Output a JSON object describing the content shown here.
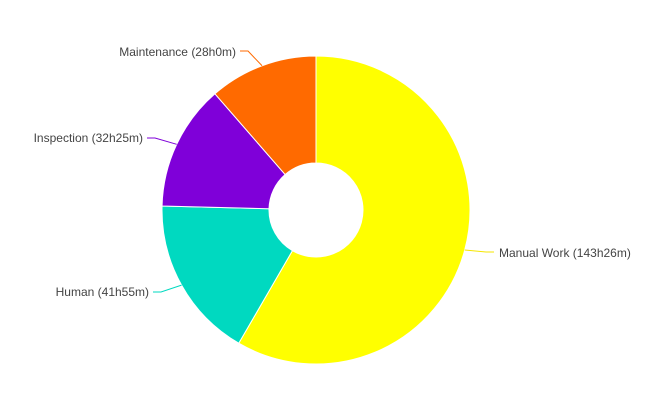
{
  "chart_data": {
    "type": "pie",
    "hole": true,
    "labels": [
      "Manual Work (143h26m)",
      "Human (41h55m)",
      "Inspection (32h25m)",
      "Maintenance (28h0m)"
    ],
    "categories": [
      "Manual Work",
      "Human",
      "Inspection",
      "Maintenance"
    ],
    "durations": [
      "143h26m",
      "41h55m",
      "32h25m",
      "28h0m"
    ],
    "values": [
      8606,
      2515,
      1945,
      1680
    ],
    "unit": "minutes",
    "colors": [
      "#ffff00",
      "#00d9c0",
      "#7f00d9",
      "#ff6a00"
    ],
    "direction": "clockwise",
    "start": "top",
    "title": "",
    "legend": "none"
  }
}
